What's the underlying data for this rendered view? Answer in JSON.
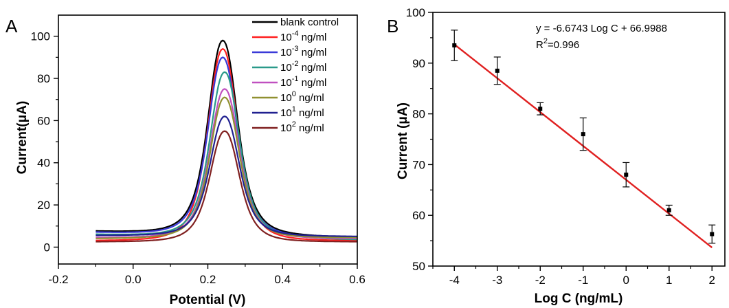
{
  "chart_data": [
    {
      "panel": "A",
      "type": "line",
      "xlabel": "Potential (V)",
      "ylabel": "Current(μA)",
      "xlim": [
        -0.2,
        0.6
      ],
      "ylim": [
        -8,
        110
      ],
      "xticks": [
        "-0.2",
        "0.0",
        "0.2",
        "0.4",
        "0.6"
      ],
      "xtick_values": [
        -0.2,
        0.0,
        0.2,
        0.4,
        0.6
      ],
      "yticks": [
        "0",
        "20",
        "40",
        "60",
        "80",
        "100"
      ],
      "ytick_values": [
        0,
        20,
        40,
        60,
        80,
        100
      ],
      "grid": false,
      "legend_position": "top-right",
      "x_range": [
        -0.1,
        0.6
      ],
      "series": [
        {
          "name": "blank control",
          "base": "blank control",
          "exp": "",
          "unit": "",
          "color": "#000000",
          "peak_x": 0.24,
          "peak_y": 98,
          "baseline_left": 7.5,
          "baseline_right": 4.5
        },
        {
          "name": "10-4 ng/ml",
          "base": "10",
          "exp": "-4",
          "unit": " ng/ml",
          "color": "#ff2020",
          "peak_x": 0.24,
          "peak_y": 94,
          "baseline_left": 3.0,
          "baseline_right": 3.0
        },
        {
          "name": "10-3 ng/ml",
          "base": "10",
          "exp": "-3",
          "unit": " ng/ml",
          "color": "#3a3ad8",
          "peak_x": 0.24,
          "peak_y": 90,
          "baseline_left": 7.0,
          "baseline_right": 4.0
        },
        {
          "name": "10-2 ng/ml",
          "base": "10",
          "exp": "-2",
          "unit": " ng/ml",
          "color": "#2a9a8a",
          "peak_x": 0.245,
          "peak_y": 83,
          "baseline_left": 6.0,
          "baseline_right": 3.5
        },
        {
          "name": "10-1 ng/ml",
          "base": "10",
          "exp": "-1",
          "unit": " ng/ml",
          "color": "#c050c0",
          "peak_x": 0.245,
          "peak_y": 75,
          "baseline_left": 4.5,
          "baseline_right": 4.0
        },
        {
          "name": "100 ng/ml",
          "base": "10",
          "exp": "0",
          "unit": " ng/ml",
          "color": "#909030",
          "peak_x": 0.245,
          "peak_y": 71,
          "baseline_left": 4.0,
          "baseline_right": 4.5
        },
        {
          "name": "101 ng/ml",
          "base": "10",
          "exp": "1",
          "unit": " ng/ml",
          "color": "#202090",
          "peak_x": 0.245,
          "peak_y": 62,
          "baseline_left": 5.5,
          "baseline_right": 5.0
        },
        {
          "name": "102 ng/ml",
          "base": "10",
          "exp": "2",
          "unit": " ng/ml",
          "color": "#802020",
          "peak_x": 0.245,
          "peak_y": 55,
          "baseline_left": 2.5,
          "baseline_right": 2.5
        }
      ]
    },
    {
      "panel": "B",
      "type": "scatter",
      "xlabel": "Log C (ng/mL)",
      "ylabel": "Current (μA)",
      "xlim": [
        -4.5,
        2.3
      ],
      "ylim": [
        50,
        100
      ],
      "xticks": [
        "-4",
        "-3",
        "-2",
        "-1",
        "0",
        "1",
        "2"
      ],
      "xtick_values": [
        -4,
        -3,
        -2,
        -1,
        0,
        1,
        2
      ],
      "yticks": [
        "50",
        "60",
        "70",
        "80",
        "90",
        "100"
      ],
      "ytick_values": [
        50,
        60,
        70,
        80,
        90,
        100
      ],
      "grid": false,
      "points": {
        "x": [
          -4,
          -3,
          -2,
          -1,
          0,
          1,
          2
        ],
        "y": [
          93.5,
          88.5,
          81.0,
          76.0,
          68.0,
          61.0,
          56.3
        ],
        "error": [
          3.0,
          2.7,
          1.2,
          3.2,
          2.4,
          1.0,
          1.8
        ]
      },
      "fit": {
        "slope": -6.6743,
        "intercept": 66.9988,
        "x_range": [
          -4,
          2
        ],
        "color": "#e02020",
        "equation": "y = -6.6743 Log C + 66.9988",
        "r2_base": "R",
        "r2_exp": "2",
        "r2_value": "=0.996"
      }
    }
  ],
  "panel_labels": {
    "a": "A",
    "b": "B"
  }
}
